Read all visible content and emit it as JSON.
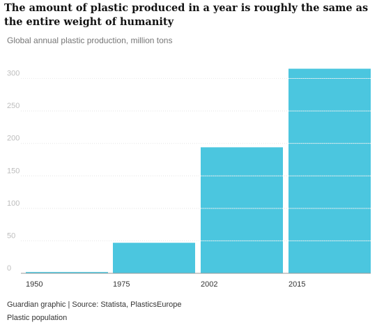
{
  "title": "The amount of plastic produced in a year is roughly the same as the entire weight of humanity",
  "subtitle": "Global annual plastic production, million tons",
  "credit": "Guardian graphic | Source: Statista, PlasticsEurope",
  "footer_label": "Plastic population",
  "colors": {
    "bar": "#4bc6df",
    "grid": "#cfcfcf",
    "tick_label": "#bdbdbd",
    "x_label": "#333333"
  },
  "chart_data": {
    "type": "bar",
    "title": "The amount of plastic produced in a year is roughly the same as the entire weight of humanity",
    "subtitle": "Global annual plastic production, million tons",
    "categories": [
      "1950",
      "1975",
      "2002",
      "2015"
    ],
    "values": [
      2,
      47,
      194,
      315
    ],
    "ylim": [
      0,
      320
    ],
    "yticks": [
      0,
      50,
      100,
      150,
      200,
      250,
      300
    ],
    "ytick_labels": [
      "0",
      "50",
      "100",
      "150",
      "200",
      "250",
      "300"
    ],
    "grid": "horizontal dotted, drawn over bars",
    "xlabel": "",
    "ylabel": ""
  }
}
